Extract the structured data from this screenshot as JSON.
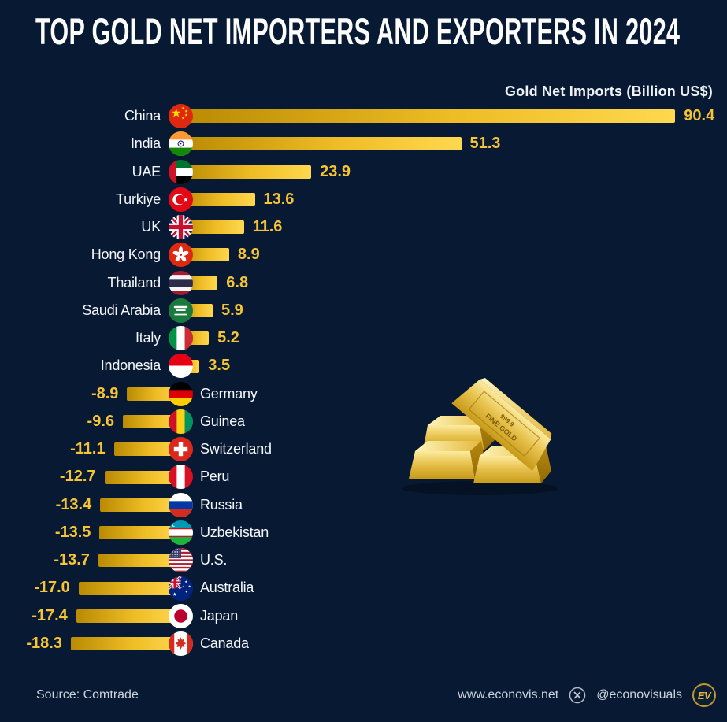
{
  "title": "TOP GOLD NET IMPORTERS AND EXPORTERS IN 2024",
  "axis_label": "Gold Net Imports (Billion US$)",
  "chart_data": {
    "type": "bar",
    "orientation": "horizontal",
    "unit": "Billion US$",
    "title": "TOP GOLD NET IMPORTERS AND EXPORTERS IN 2024",
    "axis_label": "Gold Net Imports (Billion US$)",
    "categories": [
      "China",
      "India",
      "UAE",
      "Turkiye",
      "UK",
      "Hong Kong",
      "Thailand",
      "Saudi Arabia",
      "Italy",
      "Indonesia",
      "Germany",
      "Guinea",
      "Switzerland",
      "Peru",
      "Russia",
      "Uzbekistan",
      "U.S.",
      "Australia",
      "Japan",
      "Canada"
    ],
    "values": [
      90.4,
      51.3,
      23.9,
      13.6,
      11.6,
      8.9,
      6.8,
      5.9,
      5.2,
      3.5,
      -8.9,
      -9.6,
      -11.1,
      -12.7,
      -13.4,
      -13.5,
      -13.7,
      -17.0,
      -17.4,
      -18.3
    ],
    "value_labels": [
      "90.4",
      "51.3",
      "23.9",
      "13.6",
      "11.6",
      "8.9",
      "6.8",
      "5.9",
      "5.2",
      "3.5",
      "-8.9",
      "-9.6",
      "-11.1",
      "-12.7",
      "-13.4",
      "-13.5",
      "-13.7",
      "-17.0",
      "-17.4",
      "-18.3"
    ],
    "flags": [
      "cn",
      "in",
      "ae",
      "tr",
      "gb",
      "hk",
      "th",
      "sa",
      "it",
      "id",
      "de",
      "gn",
      "ch",
      "pe",
      "ru",
      "uz",
      "us",
      "au",
      "jp",
      "ca"
    ],
    "legend": "none",
    "grid": false
  },
  "illustration": {
    "stamp_line1": "999.9",
    "stamp_line2": "FINE GOLD"
  },
  "footer": {
    "source": "Source: Comtrade",
    "website": "www.econovis.net",
    "x_handle": "@econovisuals",
    "logo_text": "EV"
  },
  "colors": {
    "background": "#081a33",
    "bar_gradient_start": "#b98a03",
    "bar_gradient_end": "#ffd84f",
    "value_text": "#f7c434",
    "country_text": "#f4f6f9",
    "title_text": "#fdfdfd",
    "footer_text": "#c9d1dc"
  }
}
